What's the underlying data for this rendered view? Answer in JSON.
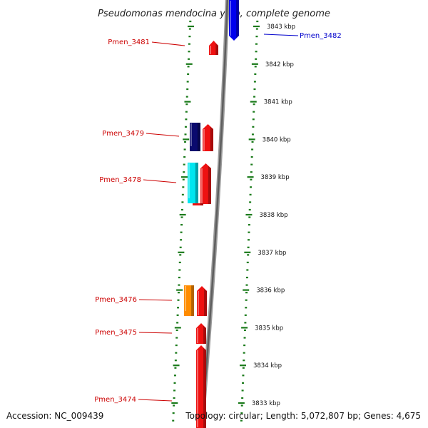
{
  "title": "Pseudomonas mendocina ymp, complete genome",
  "footer": {
    "accession": "Accession: NC_009439",
    "topology": "Topology: circular; Length: 5,072,807 bp; Genes: 4,675"
  },
  "scale": {
    "unit": "kbp",
    "ticks": [
      {
        "label": "3843 kbp"
      },
      {
        "label": "3842 kbp"
      },
      {
        "label": "3841 kbp"
      },
      {
        "label": "3840 kbp"
      },
      {
        "label": "3839 kbp"
      },
      {
        "label": "3838 kbp"
      },
      {
        "label": "3837 kbp"
      },
      {
        "label": "3836 kbp"
      },
      {
        "label": "3835 kbp"
      },
      {
        "label": "3834 kbp"
      },
      {
        "label": "3833 kbp"
      }
    ]
  },
  "genes": [
    {
      "id": "Pmen_3482",
      "label": "Pmen_3482",
      "color": "#0000ee",
      "strand": "reverse"
    },
    {
      "id": "Pmen_3481",
      "label": "Pmen_3481",
      "color": "#ee1111",
      "strand": "forward"
    },
    {
      "id": "Pmen_3479",
      "label": "Pmen_3479",
      "color": "#ee1111",
      "strand": "forward"
    },
    {
      "id": "Pmen_3479-paralog",
      "label": "",
      "color": "#0a0a6e",
      "strand": "forward"
    },
    {
      "id": "Pmen_3478",
      "label": "Pmen_3478",
      "color": "#ee1111",
      "strand": "forward"
    },
    {
      "id": "Pmen_3478-paralog",
      "label": "",
      "color": "#00e6f0",
      "strand": "forward"
    },
    {
      "id": "Pmen_3477",
      "label": "",
      "color": "#ee1111",
      "strand": "forward"
    },
    {
      "id": "Pmen_3476",
      "label": "Pmen_3476",
      "color": "#ee1111",
      "strand": "forward"
    },
    {
      "id": "Pmen_3476-paralog",
      "label": "",
      "color": "#ff8c00",
      "strand": "forward"
    },
    {
      "id": "Pmen_3475",
      "label": "Pmen_3475",
      "color": "#ee1111",
      "strand": "forward"
    },
    {
      "id": "Pmen_3474",
      "label": "Pmen_3474",
      "color": "#ee1111",
      "strand": "forward"
    }
  ],
  "colors": {
    "backbone": "#808080",
    "ticks": "#1a7a1a",
    "label_forward": "#cc0000",
    "label_reverse": "#0000cc"
  }
}
